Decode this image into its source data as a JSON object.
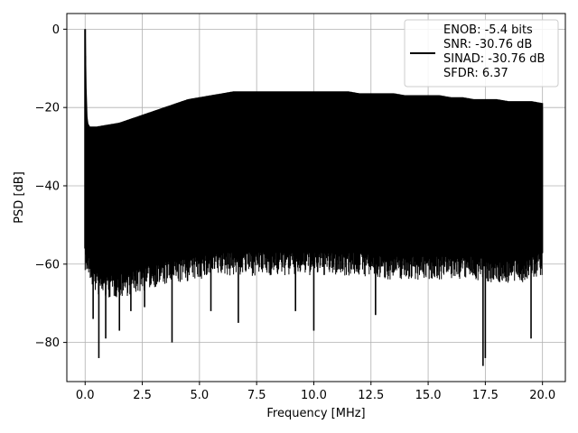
{
  "chart_data": {
    "type": "line",
    "title": "",
    "xlabel": "Frequency [MHz]",
    "ylabel": "PSD [dB]",
    "xlim": [
      -0.8,
      21.0
    ],
    "ylim": [
      -90,
      4
    ],
    "xticks": [
      0.0,
      2.5,
      5.0,
      7.5,
      10.0,
      12.5,
      15.0,
      17.5,
      20.0
    ],
    "xtick_labels": [
      "0.0",
      "2.5",
      "5.0",
      "7.5",
      "10.0",
      "12.5",
      "15.0",
      "17.5",
      "20.0"
    ],
    "yticks": [
      0,
      -20,
      -40,
      -60,
      -80
    ],
    "ytick_labels": [
      "0",
      "−20",
      "−40",
      "−60",
      "−80"
    ],
    "grid": true,
    "line_color": "#000000",
    "legend": {
      "placement": "top-right",
      "lines": [
        "ENOB: -5.4 bits",
        "SNR: -30.76 dB",
        "SINAD: -30.76 dB",
        "SFDR: 6.37"
      ]
    },
    "series": [
      {
        "upper_envelope": {
          "x": [
            0.0,
            0.02,
            0.05,
            0.1,
            0.2,
            0.5,
            1.0,
            1.5,
            2.0,
            2.5,
            3.0,
            3.5,
            4.0,
            4.5,
            5.0,
            5.5,
            6.0,
            6.5,
            7.0,
            7.5,
            8.0,
            8.5,
            9.0,
            9.5,
            10.0,
            10.5,
            11.0,
            11.5,
            12.0,
            12.5,
            13.0,
            13.5,
            14.0,
            14.5,
            15.0,
            15.5,
            16.0,
            16.5,
            17.0,
            17.5,
            18.0,
            18.5,
            19.0,
            19.5,
            20.0
          ],
          "y": [
            0,
            -5,
            -20,
            -24,
            -25,
            -25,
            -24.5,
            -24,
            -23,
            -22,
            -21,
            -20,
            -19,
            -18,
            -17.5,
            -17,
            -16.5,
            -16,
            -16,
            -16,
            -16,
            -16,
            -16,
            -16,
            -16,
            -16,
            -16,
            -16,
            -16.5,
            -16.5,
            -16.5,
            -16.5,
            -17,
            -17,
            -17,
            -17,
            -17.5,
            -17.5,
            -18,
            -18,
            -18,
            -18.5,
            -18.5,
            -18.5,
            -19
          ]
        },
        "typical_floor": {
          "x": [
            0.0,
            0.5,
            1.0,
            2.0,
            3.0,
            4.0,
            5.0,
            6.0,
            7.0,
            8.0,
            9.0,
            10.0,
            11.0,
            12.0,
            13.0,
            14.0,
            15.0,
            16.0,
            17.0,
            18.0,
            19.0,
            20.0
          ],
          "y": [
            -56,
            -62,
            -63,
            -62,
            -60,
            -59,
            -58,
            -57,
            -57,
            -57,
            -57,
            -57,
            -57,
            -57,
            -58,
            -58,
            -58,
            -58,
            -58,
            -59,
            -59,
            -57
          ]
        },
        "spikes": [
          {
            "x": 0.6,
            "y": -84
          },
          {
            "x": 0.35,
            "y": -74
          },
          {
            "x": 0.9,
            "y": -79
          },
          {
            "x": 1.5,
            "y": -77
          },
          {
            "x": 2.0,
            "y": -72
          },
          {
            "x": 2.6,
            "y": -71
          },
          {
            "x": 3.8,
            "y": -80
          },
          {
            "x": 5.5,
            "y": -72
          },
          {
            "x": 6.7,
            "y": -75
          },
          {
            "x": 9.2,
            "y": -72
          },
          {
            "x": 10.0,
            "y": -77
          },
          {
            "x": 12.7,
            "y": -73
          },
          {
            "x": 17.4,
            "y": -86
          },
          {
            "x": 17.5,
            "y": -84
          },
          {
            "x": 19.5,
            "y": -79
          }
        ]
      }
    ]
  }
}
